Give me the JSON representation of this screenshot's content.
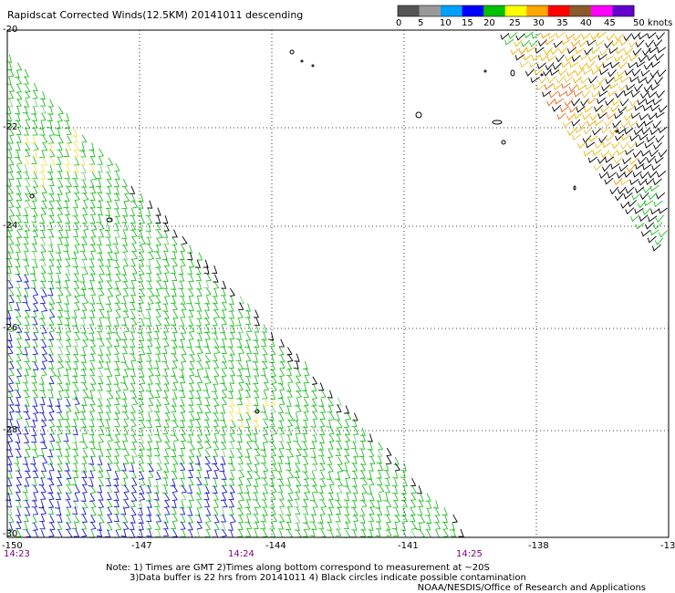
{
  "title": "Rapidscat Corrected Winds(12.5KM) 20141011 descending",
  "color_scale": {
    "units_label": "50 knots",
    "labels": [
      "0",
      "5",
      "10",
      "15",
      "20",
      "25",
      "30",
      "35",
      "40",
      "45"
    ],
    "colors": [
      "#555555",
      "#999999",
      "#00a0ff",
      "#0000ff",
      "#00c000",
      "#ffff00",
      "#ffa500",
      "#ff0000",
      "#8b5a2b",
      "#ff00ff",
      "#6600cc"
    ]
  },
  "lat_labels": [
    "-20",
    "-22",
    "-24",
    "-26",
    "-28",
    "-30"
  ],
  "lon_labels": [
    "-150",
    "-147",
    "-144",
    "-141",
    "-138",
    "-13"
  ],
  "time_labels": [
    "14:23",
    "14:24",
    "14:25"
  ],
  "notes": [
    "Note: 1) Times are GMT 2)Times along bottom correspond to measurement at ~20S",
    "3)Data buffer is 22 hrs from 20141011 4) Black circles indicate possible contamination"
  ],
  "credit": "NOAA/NESDIS/Office of Research and Applications"
}
